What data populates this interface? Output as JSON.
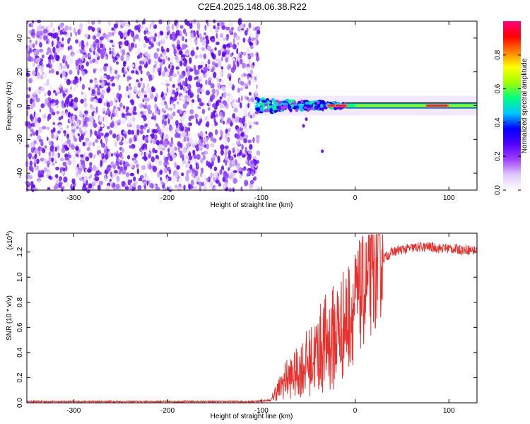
{
  "title": "C2E4.2025.148.06.38.R22",
  "spectrogram": {
    "xlabel": "Height of straight line (km)",
    "ylabel": "Frequency (Hz)",
    "xlim": [
      -350,
      130
    ],
    "ylim": [
      -50,
      50
    ],
    "xticks": [
      -300,
      -200,
      -100,
      0,
      100
    ],
    "yticks": [
      -40,
      -20,
      0,
      20,
      40
    ],
    "colorbar": {
      "label": "Normalized spectral amplitude",
      "ticks": [
        "0.0",
        "0.2",
        "0.4",
        "0.6",
        "0.8"
      ],
      "range": [
        0,
        1
      ],
      "colors": [
        "#ffffff",
        "#e0c8ff",
        "#a040ff",
        "#5000ff",
        "#0000ff",
        "#00c8ff",
        "#00ff80",
        "#a0ff00",
        "#ffff00",
        "#ff8000",
        "#ff0000",
        "#ff0080"
      ]
    }
  },
  "chart_data": {
    "type": "line",
    "title": "C2E4.2025.148.06.38.R22",
    "xlabel": "Height of straight line (km)",
    "ylabel": "SNR (10 * v/v)",
    "y_multiplier": "(x10^4)",
    "xlim": [
      -350,
      130
    ],
    "ylim": [
      0,
      1.35
    ],
    "xticks": [
      -300,
      -200,
      -100,
      0,
      100
    ],
    "yticks": [
      "0.0",
      "0.2",
      "0.4",
      "0.6",
      "0.8",
      "1.0",
      "1.2"
    ],
    "series": [
      {
        "color": "#e8302c",
        "x": [
          -350,
          -300,
          -250,
          -200,
          -150,
          -110,
          -90,
          -85,
          -80,
          -75,
          -70,
          -65,
          -60,
          -55,
          -50,
          -45,
          -40,
          -35,
          -30,
          -25,
          -20,
          -15,
          -10,
          -5,
          0,
          5,
          10,
          15,
          20,
          25,
          30,
          40,
          50,
          60,
          70,
          80,
          90,
          100,
          110,
          120,
          130
        ],
        "y": [
          0.01,
          0.01,
          0.01,
          0.01,
          0.01,
          0.01,
          0.02,
          0.08,
          0.12,
          0.18,
          0.2,
          0.22,
          0.25,
          0.3,
          0.32,
          0.35,
          0.4,
          0.45,
          0.48,
          0.5,
          0.55,
          0.6,
          0.65,
          0.72,
          0.78,
          0.85,
          0.9,
          0.95,
          1.0,
          1.08,
          1.15,
          1.2,
          1.22,
          1.23,
          1.24,
          1.24,
          1.23,
          1.23,
          1.22,
          1.22,
          1.21
        ]
      }
    ]
  }
}
